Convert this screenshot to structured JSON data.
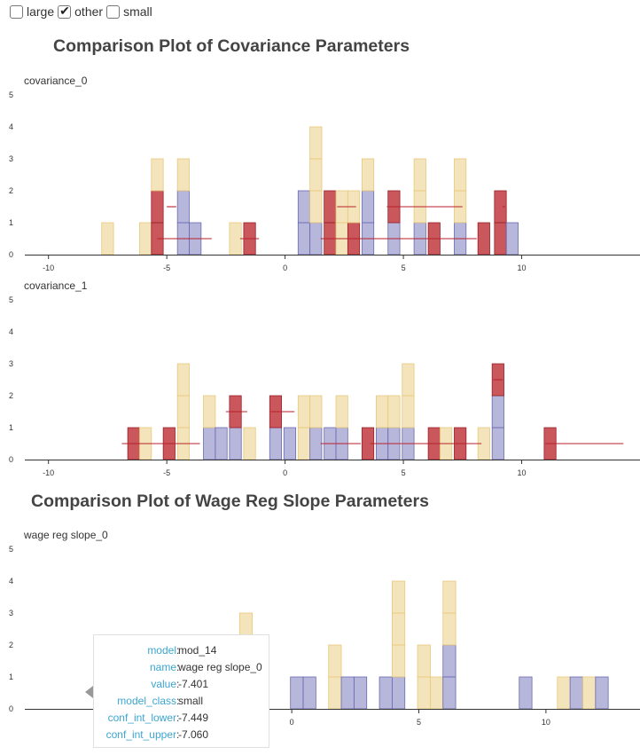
{
  "filters": [
    {
      "label": "large",
      "checked": false
    },
    {
      "label": "other",
      "checked": true
    },
    {
      "label": "small",
      "checked": false
    }
  ],
  "sections": [
    {
      "title": "Comparison Plot of Covariance Parameters"
    },
    {
      "title": "Comparison Plot of Wage Reg Slope Parameters"
    }
  ],
  "colors": {
    "small": "#efd9a0",
    "other": "#9898cc",
    "large": "#c0393f"
  },
  "tooltip": {
    "rows": [
      {
        "key": "model",
        "value": "mod_14"
      },
      {
        "key": "name",
        "value": "wage reg slope_0"
      },
      {
        "key": "value",
        "value": "-7.401"
      },
      {
        "key": "model_class",
        "value": "small"
      },
      {
        "key": "conf_int_lower",
        "value": "-7.449"
      },
      {
        "key": "conf_int_upper",
        "value": "-7.060"
      }
    ]
  },
  "chart_data": [
    {
      "type": "bar",
      "title": "covariance_0",
      "xlim": [
        -11,
        15
      ],
      "ylim": [
        0,
        5
      ],
      "xticks": [
        "-10",
        "-5",
        "0",
        "5",
        "10"
      ],
      "yticks": [
        "0",
        "1",
        "2",
        "3",
        "4",
        "5"
      ],
      "bin_width": 0.5,
      "bins": [
        {
          "x": -7.5,
          "stack": [
            "small"
          ]
        },
        {
          "x": -5.9,
          "stack": [
            "small"
          ]
        },
        {
          "x": -5.4,
          "stack": [
            "large",
            "large",
            "small"
          ]
        },
        {
          "x": -4.3,
          "stack": [
            "other",
            "other",
            "small"
          ]
        },
        {
          "x": -3.8,
          "stack": [
            "other"
          ]
        },
        {
          "x": -2.1,
          "stack": [
            "small"
          ]
        },
        {
          "x": -1.5,
          "stack": [
            "large"
          ]
        },
        {
          "x": 0.8,
          "stack": [
            "other",
            "other"
          ]
        },
        {
          "x": 1.3,
          "stack": [
            "other",
            "small",
            "small",
            "small"
          ]
        },
        {
          "x": 1.9,
          "stack": [
            "large",
            "large"
          ]
        },
        {
          "x": 2.4,
          "stack": [
            "small",
            "small"
          ]
        },
        {
          "x": 2.9,
          "stack": [
            "large",
            "small"
          ]
        },
        {
          "x": 3.5,
          "stack": [
            "other",
            "other",
            "small"
          ]
        },
        {
          "x": 4.6,
          "stack": [
            "other",
            "large"
          ]
        },
        {
          "x": 5.7,
          "stack": [
            "other",
            "small",
            "small"
          ]
        },
        {
          "x": 6.3,
          "stack": [
            "large"
          ]
        },
        {
          "x": 7.4,
          "stack": [
            "other",
            "small",
            "small"
          ]
        },
        {
          "x": 8.4,
          "stack": [
            "large"
          ]
        },
        {
          "x": 9.1,
          "stack": [
            "large",
            "large"
          ]
        },
        {
          "x": 9.6,
          "stack": [
            "other"
          ]
        }
      ],
      "intervals": [
        {
          "lo": -5.4,
          "hi": -3.1,
          "y": 0.5
        },
        {
          "lo": -5.0,
          "hi": -4.6,
          "y": 1.5
        },
        {
          "lo": -1.9,
          "hi": -1.1,
          "y": 0.5
        },
        {
          "lo": 1.5,
          "hi": 8.1,
          "y": 0.5
        },
        {
          "lo": 2.2,
          "hi": 3.0,
          "y": 1.5
        },
        {
          "lo": 4.3,
          "hi": 7.5,
          "y": 1.5
        },
        {
          "lo": 9.2,
          "hi": 9.3,
          "y": 1.5
        }
      ]
    },
    {
      "type": "bar",
      "title": "covariance_1",
      "xlim": [
        -11,
        15
      ],
      "ylim": [
        0,
        5
      ],
      "xticks": [
        "-10",
        "-5",
        "0",
        "5",
        "10"
      ],
      "yticks": [
        "0",
        "1",
        "2",
        "3",
        "4",
        "5"
      ],
      "bin_width": 0.5,
      "bins": [
        {
          "x": -6.4,
          "stack": [
            "large"
          ]
        },
        {
          "x": -5.9,
          "stack": [
            "small"
          ]
        },
        {
          "x": -4.9,
          "stack": [
            "large"
          ]
        },
        {
          "x": -4.3,
          "stack": [
            "small",
            "small",
            "small"
          ]
        },
        {
          "x": -3.2,
          "stack": [
            "other",
            "small"
          ]
        },
        {
          "x": -2.7,
          "stack": [
            "other"
          ]
        },
        {
          "x": -2.1,
          "stack": [
            "other",
            "large"
          ]
        },
        {
          "x": -1.5,
          "stack": [
            "small"
          ]
        },
        {
          "x": -0.4,
          "stack": [
            "other",
            "large"
          ]
        },
        {
          "x": 0.2,
          "stack": [
            "other"
          ]
        },
        {
          "x": 0.8,
          "stack": [
            "small",
            "small"
          ]
        },
        {
          "x": 1.3,
          "stack": [
            "other",
            "small"
          ]
        },
        {
          "x": 1.9,
          "stack": [
            "other"
          ]
        },
        {
          "x": 2.4,
          "stack": [
            "other",
            "small"
          ]
        },
        {
          "x": 3.5,
          "stack": [
            "large"
          ]
        },
        {
          "x": 4.1,
          "stack": [
            "other",
            "small"
          ]
        },
        {
          "x": 4.6,
          "stack": [
            "other",
            "small"
          ]
        },
        {
          "x": 5.2,
          "stack": [
            "other",
            "small",
            "small"
          ]
        },
        {
          "x": 6.3,
          "stack": [
            "large"
          ]
        },
        {
          "x": 6.8,
          "stack": [
            "small"
          ]
        },
        {
          "x": 7.4,
          "stack": [
            "large"
          ]
        },
        {
          "x": 8.4,
          "stack": [
            "small"
          ]
        },
        {
          "x": 9.0,
          "stack": [
            "other",
            "other",
            "large"
          ]
        },
        {
          "x": 11.2,
          "stack": [
            "large"
          ]
        }
      ],
      "intervals": [
        {
          "lo": -6.9,
          "hi": -3.6,
          "y": 0.5
        },
        {
          "lo": -2.5,
          "hi": -1.6,
          "y": 1.5
        },
        {
          "lo": -0.6,
          "hi": 0.4,
          "y": 1.5
        },
        {
          "lo": 1.5,
          "hi": 3.2,
          "y": 0.5
        },
        {
          "lo": 3.6,
          "hi": 8.3,
          "y": 0.5
        },
        {
          "lo": 8.8,
          "hi": 9.2,
          "y": 2.5
        },
        {
          "lo": 11.0,
          "hi": 14.3,
          "y": 0.5
        }
      ]
    },
    {
      "type": "bar",
      "title": "wage reg slope_0",
      "xlim": [
        -10.5,
        13.7
      ],
      "ylim": [
        0,
        5
      ],
      "xticks": [
        "0",
        "5",
        "10"
      ],
      "yticks": [
        "0",
        "1",
        "2",
        "3",
        "4",
        "5"
      ],
      "bin_width": 0.5,
      "bins": [
        {
          "x": -7.4,
          "stack": [
            "small"
          ]
        },
        {
          "x": -1.8,
          "stack": [
            "small",
            "small",
            "small"
          ]
        },
        {
          "x": 0.2,
          "stack": [
            "other"
          ]
        },
        {
          "x": 0.7,
          "stack": [
            "other"
          ]
        },
        {
          "x": 1.7,
          "stack": [
            "small",
            "small"
          ]
        },
        {
          "x": 2.2,
          "stack": [
            "other"
          ]
        },
        {
          "x": 2.7,
          "stack": [
            "other"
          ]
        },
        {
          "x": 3.7,
          "stack": [
            "other"
          ]
        },
        {
          "x": 4.2,
          "stack": [
            "other",
            "small",
            "small",
            "small"
          ]
        },
        {
          "x": 5.2,
          "stack": [
            "small",
            "small"
          ]
        },
        {
          "x": 5.7,
          "stack": [
            "small"
          ]
        },
        {
          "x": 6.2,
          "stack": [
            "other",
            "other",
            "small",
            "small"
          ]
        },
        {
          "x": 9.2,
          "stack": [
            "other"
          ]
        },
        {
          "x": 10.7,
          "stack": [
            "small"
          ]
        },
        {
          "x": 11.2,
          "stack": [
            "other"
          ]
        },
        {
          "x": 11.7,
          "stack": [
            "small"
          ]
        },
        {
          "x": 12.2,
          "stack": [
            "other"
          ]
        }
      ],
      "intervals": []
    }
  ]
}
